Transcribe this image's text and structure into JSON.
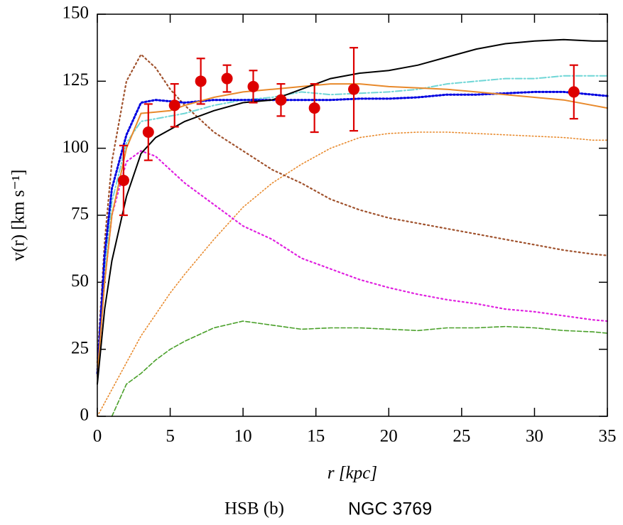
{
  "chart_data": {
    "type": "line",
    "xlabel": "r [kpc]",
    "ylabel": "v(r) [km s⁻¹]",
    "caption": "HSB (b)",
    "galaxy": "NGC 3769",
    "xlim": [
      0,
      35
    ],
    "xticks": [
      0,
      5,
      10,
      15,
      20,
      25,
      30,
      35
    ],
    "ylim": [
      0,
      150
    ],
    "yticks": [
      0,
      25,
      50,
      75,
      100,
      125,
      150
    ],
    "x": [
      0,
      0.5,
      1,
      2,
      3,
      4,
      5,
      6,
      8,
      10,
      12,
      14,
      16,
      18,
      20,
      22,
      24,
      26,
      28,
      30,
      32,
      34,
      35
    ],
    "series": [
      {
        "color": "#e8892b",
        "style": "dotted-fine",
        "values": [
          0,
          5,
          10,
          20,
          30,
          38,
          46,
          53,
          66,
          78,
          87,
          94,
          100,
          104,
          105.5,
          106,
          106,
          105.5,
          105,
          104.5,
          104,
          103,
          103
        ]
      },
      {
        "color": "#4aa02a",
        "style": "dashed",
        "values": [
          null,
          null,
          0,
          12,
          16,
          21,
          25,
          28,
          33,
          35.5,
          34,
          32.5,
          33,
          33,
          32.5,
          32,
          33,
          33,
          33.5,
          33,
          32,
          31.5,
          31
        ]
      },
      {
        "color": "#e020e0",
        "style": "dotted",
        "values": [
          15,
          50,
          75,
          95,
          99,
          97,
          92,
          87,
          79,
          71,
          66,
          59,
          55,
          51,
          48,
          45.5,
          43.5,
          42,
          40,
          39,
          37.5,
          36,
          35.5
        ]
      },
      {
        "color": "#a0522d",
        "style": "dotted",
        "values": [
          20,
          65,
          95,
          125,
          135,
          130,
          122,
          116,
          106,
          99,
          92,
          87,
          81,
          77,
          74,
          72,
          70,
          68,
          66,
          64,
          62,
          60.5,
          60
        ]
      },
      {
        "color": "#6fd6d6",
        "style": "dashdot",
        "values": [
          15,
          55,
          80,
          102,
          110,
          111,
          112,
          113,
          116,
          118,
          119,
          121,
          120,
          120.5,
          121,
          122,
          124,
          125,
          126,
          126,
          127,
          127,
          127
        ]
      },
      {
        "color": "#0000e0",
        "style": "dotted-bold",
        "values": [
          16,
          60,
          85,
          105,
          117,
          118,
          117.5,
          117,
          118,
          118,
          118,
          118,
          118,
          118.5,
          118.5,
          119,
          120,
          120,
          120.5,
          121,
          121,
          120,
          119.5
        ]
      },
      {
        "color": "#e8892b",
        "style": "solid",
        "values": [
          15,
          50,
          75,
          100,
          113,
          113.5,
          114,
          116,
          119,
          121,
          122,
          123,
          124,
          124,
          123,
          122.5,
          122,
          121,
          120,
          119,
          118,
          116,
          115
        ]
      },
      {
        "color": "#000000",
        "style": "solid",
        "values": [
          12,
          40,
          58,
          82,
          98,
          104,
          107,
          110,
          114,
          117,
          118,
          122,
          126,
          128,
          129,
          131,
          134,
          137,
          139,
          140,
          140.5,
          140,
          140
        ]
      }
    ],
    "points": {
      "color": "#dd0000",
      "x": [
        1.8,
        3.5,
        5.3,
        7.1,
        8.9,
        10.7,
        12.6,
        14.9,
        17.6,
        32.7
      ],
      "values": [
        88,
        106,
        116,
        125,
        126,
        123,
        118,
        115,
        122,
        121
      ],
      "errors": [
        13,
        10.5,
        8,
        8.5,
        5,
        6,
        6,
        9,
        15.5,
        10
      ]
    }
  }
}
